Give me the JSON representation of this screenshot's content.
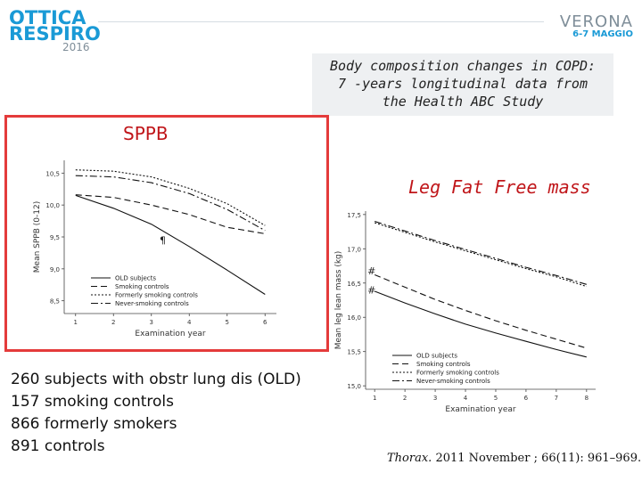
{
  "header": {
    "logo_left": {
      "line1": "OTTICA",
      "line2": "RESPIRO",
      "line3": "2016"
    },
    "logo_right": {
      "city": "VERONA",
      "dates": "6-7 MAGGIO"
    }
  },
  "slide": {
    "title_lines": [
      "Body composition changes in COPD:",
      "7 -years longitudinal data from",
      "the Health ABC Study"
    ],
    "left_panel_label": "SPPB",
    "right_panel_label": "Leg Fat Free mass",
    "counts": [
      "260 subjects with obstr lung dis (OLD)",
      "157 smoking controls",
      "866 formerly smokers",
      "891 controls"
    ],
    "citation": {
      "journal": "Thorax.",
      "rest": " 2011 November ; 66(11): 961–969."
    }
  },
  "chart_data": [
    {
      "type": "line",
      "title": "",
      "xlabel": "Examination year",
      "ylabel": "Mean SPPB (0-12)",
      "x": [
        1,
        2,
        3,
        4,
        5,
        6
      ],
      "xlim": [
        0.7,
        6.3
      ],
      "ylim": [
        8.3,
        10.7
      ],
      "yticks": [
        8.5,
        9.0,
        9.5,
        10.0,
        10.5
      ],
      "yticklabels": [
        "8,5",
        "9,0",
        "9,5",
        "10,0",
        "10,5"
      ],
      "xticks": [
        1,
        2,
        3,
        4,
        5,
        6
      ],
      "annotations": [
        {
          "text": "¶",
          "x": 3.3,
          "y": 9.45
        }
      ],
      "legend": "bottom-left",
      "series": [
        {
          "name": "OLD subjects",
          "style": "solid",
          "values": [
            10.15,
            9.95,
            9.7,
            9.35,
            8.98,
            8.6
          ]
        },
        {
          "name": "Smoking controls",
          "style": "dashed",
          "values": [
            10.16,
            10.12,
            10.0,
            9.85,
            9.65,
            9.55
          ]
        },
        {
          "name": "Formerly smoking controls",
          "style": "dotted",
          "values": [
            10.55,
            10.53,
            10.44,
            10.26,
            10.02,
            9.68
          ]
        },
        {
          "name": "Never-smoking controls",
          "style": "dashdot",
          "values": [
            10.46,
            10.44,
            10.35,
            10.18,
            9.93,
            9.6
          ]
        }
      ]
    },
    {
      "type": "line",
      "title": "",
      "xlabel": "Examination year",
      "ylabel": "Mean leg lean mass (kg)",
      "x": [
        1,
        2,
        3,
        4,
        5,
        6,
        7,
        8
      ],
      "xlim": [
        0.7,
        8.3
      ],
      "ylim": [
        14.95,
        17.55
      ],
      "yticks": [
        15.0,
        15.5,
        16.0,
        16.5,
        17.0,
        17.5
      ],
      "yticklabels": [
        "15,0",
        "15,5",
        "16,0",
        "16,5",
        "17,0",
        "17,5"
      ],
      "xticks": [
        1,
        2,
        3,
        4,
        5,
        6,
        7,
        8
      ],
      "annotations": [
        {
          "text": "#",
          "x": 0.9,
          "y": 16.68
        },
        {
          "text": "#",
          "x": 0.9,
          "y": 16.4
        }
      ],
      "legend": "bottom-left",
      "series": [
        {
          "name": "OLD subjects",
          "style": "solid",
          "values": [
            16.38,
            16.21,
            16.05,
            15.9,
            15.77,
            15.65,
            15.53,
            15.42
          ]
        },
        {
          "name": "Smoking controls",
          "style": "dashed",
          "values": [
            16.62,
            16.44,
            16.26,
            16.1,
            15.95,
            15.81,
            15.68,
            15.55
          ]
        },
        {
          "name": "Formerly smoking controls",
          "style": "dotted",
          "values": [
            17.38,
            17.24,
            17.1,
            16.97,
            16.84,
            16.71,
            16.59,
            16.45
          ]
        },
        {
          "name": "Never-smoking controls",
          "style": "dashdot",
          "values": [
            17.4,
            17.26,
            17.12,
            16.99,
            16.86,
            16.73,
            16.61,
            16.48
          ]
        }
      ]
    }
  ]
}
